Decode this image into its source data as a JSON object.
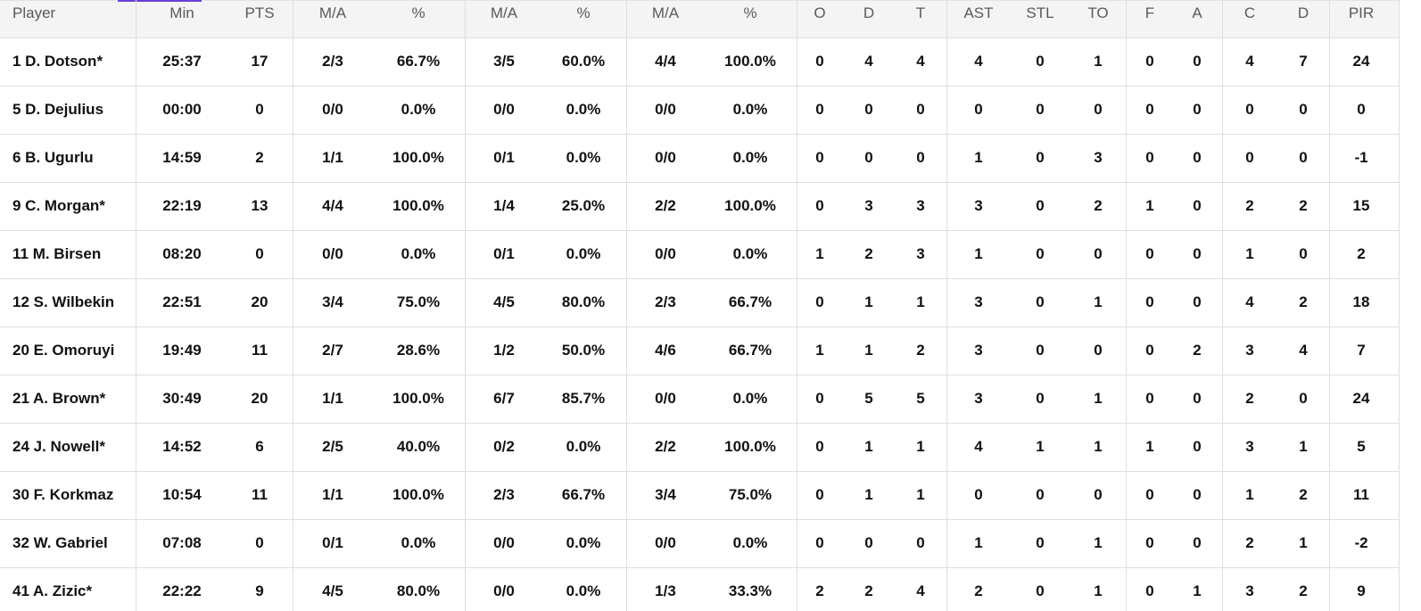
{
  "table": {
    "headers": [
      "Player",
      "Min",
      "PTS",
      "M/A",
      "%",
      "M/A",
      "%",
      "M/A",
      "%",
      "O",
      "D",
      "T",
      "AST",
      "STL",
      "TO",
      "F",
      "A",
      "C",
      "D",
      "PIR"
    ],
    "rows": [
      [
        "1 D. Dotson*",
        "25:37",
        "17",
        "2/3",
        "66.7%",
        "3/5",
        "60.0%",
        "4/4",
        "100.0%",
        "0",
        "4",
        "4",
        "4",
        "0",
        "1",
        "0",
        "0",
        "4",
        "7",
        "24"
      ],
      [
        "5 D. Dejulius",
        "00:00",
        "0",
        "0/0",
        "0.0%",
        "0/0",
        "0.0%",
        "0/0",
        "0.0%",
        "0",
        "0",
        "0",
        "0",
        "0",
        "0",
        "0",
        "0",
        "0",
        "0",
        "0"
      ],
      [
        "6 B. Ugurlu",
        "14:59",
        "2",
        "1/1",
        "100.0%",
        "0/1",
        "0.0%",
        "0/0",
        "0.0%",
        "0",
        "0",
        "0",
        "1",
        "0",
        "3",
        "0",
        "0",
        "0",
        "0",
        "-1"
      ],
      [
        "9 C. Morgan*",
        "22:19",
        "13",
        "4/4",
        "100.0%",
        "1/4",
        "25.0%",
        "2/2",
        "100.0%",
        "0",
        "3",
        "3",
        "3",
        "0",
        "2",
        "1",
        "0",
        "2",
        "2",
        "15"
      ],
      [
        "11 M. Birsen",
        "08:20",
        "0",
        "0/0",
        "0.0%",
        "0/1",
        "0.0%",
        "0/0",
        "0.0%",
        "1",
        "2",
        "3",
        "1",
        "0",
        "0",
        "0",
        "0",
        "1",
        "0",
        "2"
      ],
      [
        "12 S. Wilbekin",
        "22:51",
        "20",
        "3/4",
        "75.0%",
        "4/5",
        "80.0%",
        "2/3",
        "66.7%",
        "0",
        "1",
        "1",
        "3",
        "0",
        "1",
        "0",
        "0",
        "4",
        "2",
        "18"
      ],
      [
        "20 E. Omoruyi",
        "19:49",
        "11",
        "2/7",
        "28.6%",
        "1/2",
        "50.0%",
        "4/6",
        "66.7%",
        "1",
        "1",
        "2",
        "3",
        "0",
        "0",
        "0",
        "2",
        "3",
        "4",
        "7"
      ],
      [
        "21 A. Brown*",
        "30:49",
        "20",
        "1/1",
        "100.0%",
        "6/7",
        "85.7%",
        "0/0",
        "0.0%",
        "0",
        "5",
        "5",
        "3",
        "0",
        "1",
        "0",
        "0",
        "2",
        "0",
        "24"
      ],
      [
        "24 J. Nowell*",
        "14:52",
        "6",
        "2/5",
        "40.0%",
        "0/2",
        "0.0%",
        "2/2",
        "100.0%",
        "0",
        "1",
        "1",
        "4",
        "1",
        "1",
        "1",
        "0",
        "3",
        "1",
        "5"
      ],
      [
        "30 F. Korkmaz",
        "10:54",
        "11",
        "1/1",
        "100.0%",
        "2/3",
        "66.7%",
        "3/4",
        "75.0%",
        "0",
        "1",
        "1",
        "0",
        "0",
        "0",
        "0",
        "0",
        "1",
        "2",
        "11"
      ],
      [
        "32 W. Gabriel",
        "07:08",
        "0",
        "0/1",
        "0.0%",
        "0/0",
        "0.0%",
        "0/0",
        "0.0%",
        "0",
        "0",
        "0",
        "1",
        "0",
        "1",
        "0",
        "0",
        "2",
        "1",
        "-2"
      ],
      [
        "41 A. Zizic*",
        "22:22",
        "9",
        "4/5",
        "80.0%",
        "0/0",
        "0.0%",
        "1/3",
        "33.3%",
        "2",
        "2",
        "4",
        "2",
        "0",
        "1",
        "0",
        "1",
        "3",
        "2",
        "9"
      ]
    ]
  }
}
